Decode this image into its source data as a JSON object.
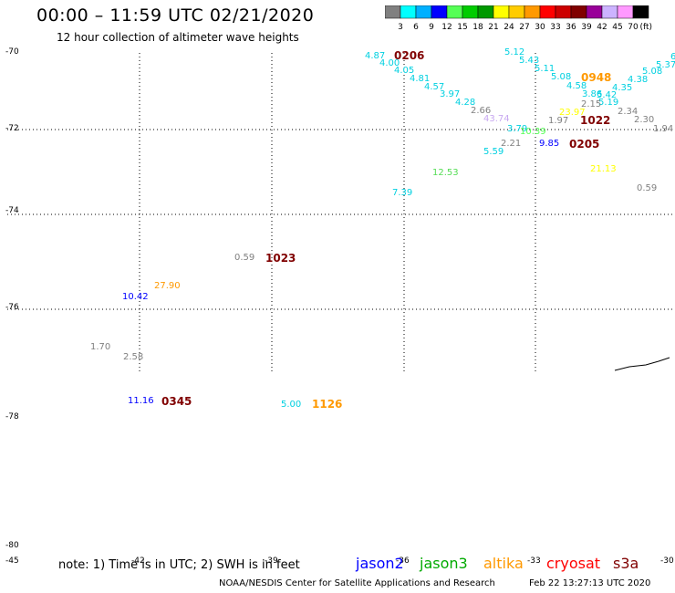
{
  "title": "00:00 – 11:59 UTC 02/21/2020",
  "subtitle": "12 hour collection of altimeter wave heights",
  "colorbar": {
    "unit_label": "(ft)",
    "bins": [
      {
        "label": "3",
        "color": "#808080"
      },
      {
        "label": "6",
        "color": "#00ffff"
      },
      {
        "label": "9",
        "color": "#00b0ff"
      },
      {
        "label": "12",
        "color": "#0000ff"
      },
      {
        "label": "15",
        "color": "#55ff55"
      },
      {
        "label": "18",
        "color": "#00cc00"
      },
      {
        "label": "21",
        "color": "#009900"
      },
      {
        "label": "24",
        "color": "#ffff00"
      },
      {
        "label": "27",
        "color": "#ffcc00"
      },
      {
        "label": "30",
        "color": "#ff9900"
      },
      {
        "label": "33",
        "color": "#ff0000"
      },
      {
        "label": "36",
        "color": "#cc0000"
      },
      {
        "label": "39",
        "color": "#800000"
      },
      {
        "label": "42",
        "color": "#990099"
      },
      {
        "label": "45",
        "color": "#ccb3ff"
      },
      {
        "label": "70",
        "color": "#ff99ff"
      },
      {
        "label": "",
        "color": "#000000"
      }
    ]
  },
  "lat_labels": [
    "-70",
    "-72",
    "-74",
    "-76",
    "-78",
    "-80"
  ],
  "lon_labels": [
    "-45",
    "-42",
    "-39",
    "-36",
    "-33",
    "-30"
  ],
  "observations": [
    {
      "text": "4.87",
      "color": "#00d0e0"
    },
    {
      "text": "4.00",
      "color": "#00d0e0"
    },
    {
      "text": "4.05",
      "color": "#00d0e0"
    },
    {
      "text": "4.81",
      "color": "#00d0e0"
    },
    {
      "text": "4.57",
      "color": "#00d0e0"
    },
    {
      "text": "3.97",
      "color": "#00d0e0"
    },
    {
      "text": "4.28",
      "color": "#00d0e0"
    },
    {
      "text": "2.66",
      "color": "#808080"
    },
    {
      "text": "43.74",
      "color": "#c8a8f0"
    },
    {
      "text": "3.79",
      "color": "#00d0e0"
    },
    {
      "text": "10.39",
      "color": "#55ff55"
    },
    {
      "text": "2.21",
      "color": "#808080"
    },
    {
      "text": "5.59",
      "color": "#00d0e0"
    },
    {
      "text": "9.85",
      "color": "#0000ff"
    },
    {
      "text": "12.53",
      "color": "#55dd55"
    },
    {
      "text": "7.39",
      "color": "#00d0e0"
    },
    {
      "text": "5.12",
      "color": "#00d0e0"
    },
    {
      "text": "5.43",
      "color": "#00d0e0"
    },
    {
      "text": "5.11",
      "color": "#00d0e0"
    },
    {
      "text": "5.08",
      "color": "#00d0e0"
    },
    {
      "text": "4.58",
      "color": "#00d0e0"
    },
    {
      "text": "3.86",
      "color": "#00d0e0"
    },
    {
      "text": "5.42",
      "color": "#00d0e0"
    },
    {
      "text": "5.19",
      "color": "#00d0e0"
    },
    {
      "text": "4.35",
      "color": "#00d0e0"
    },
    {
      "text": "4.38",
      "color": "#00d0e0"
    },
    {
      "text": "5.08",
      "color": "#00d0e0"
    },
    {
      "text": "5.37",
      "color": "#00d0e0"
    },
    {
      "text": "6",
      "color": "#00d0e0"
    },
    {
      "text": "2.15",
      "color": "#808080"
    },
    {
      "text": "2.34",
      "color": "#808080"
    },
    {
      "text": "2.30",
      "color": "#808080"
    },
    {
      "text": "1.94",
      "color": "#808080"
    },
    {
      "text": "1.97",
      "color": "#808080"
    },
    {
      "text": "23.97",
      "color": "#ffff00"
    },
    {
      "text": "21.13",
      "color": "#ffff00"
    },
    {
      "text": "0.59",
      "color": "#808080"
    },
    {
      "text": "0.59",
      "color": "#808080"
    },
    {
      "text": "27.90",
      "color": "#ff9900"
    },
    {
      "text": "10.42",
      "color": "#0000ff"
    },
    {
      "text": "1.70",
      "color": "#808080"
    },
    {
      "text": "2.58",
      "color": "#808080"
    },
    {
      "text": "11.16",
      "color": "#0000ff"
    },
    {
      "text": "5.00",
      "color": "#00d0e0"
    }
  ],
  "pass_times": [
    {
      "text": "0206",
      "color": "#800000"
    },
    {
      "text": "0948",
      "color": "#ff9900"
    },
    {
      "text": "1022",
      "color": "#800000"
    },
    {
      "text": "0205",
      "color": "#800000"
    },
    {
      "text": "1023",
      "color": "#800000"
    },
    {
      "text": "0345",
      "color": "#800000"
    },
    {
      "text": "1126",
      "color": "#ff9900"
    }
  ],
  "note": "note: 1) Time is in UTC; 2) SWH is in feet",
  "satellites": [
    {
      "text": "jason2",
      "color": "#0000ff"
    },
    {
      "text": "jason3",
      "color": "#00aa00"
    },
    {
      "text": "altika",
      "color": "#ff9900"
    },
    {
      "text": "cryosat",
      "color": "#ff0000"
    },
    {
      "text": "s3a",
      "color": "#800000"
    }
  ],
  "credit": "NOAA/NESDIS Center for Satellite Applications and Research",
  "timestamp": "Feb 22 13:27:13 UTC 2020"
}
